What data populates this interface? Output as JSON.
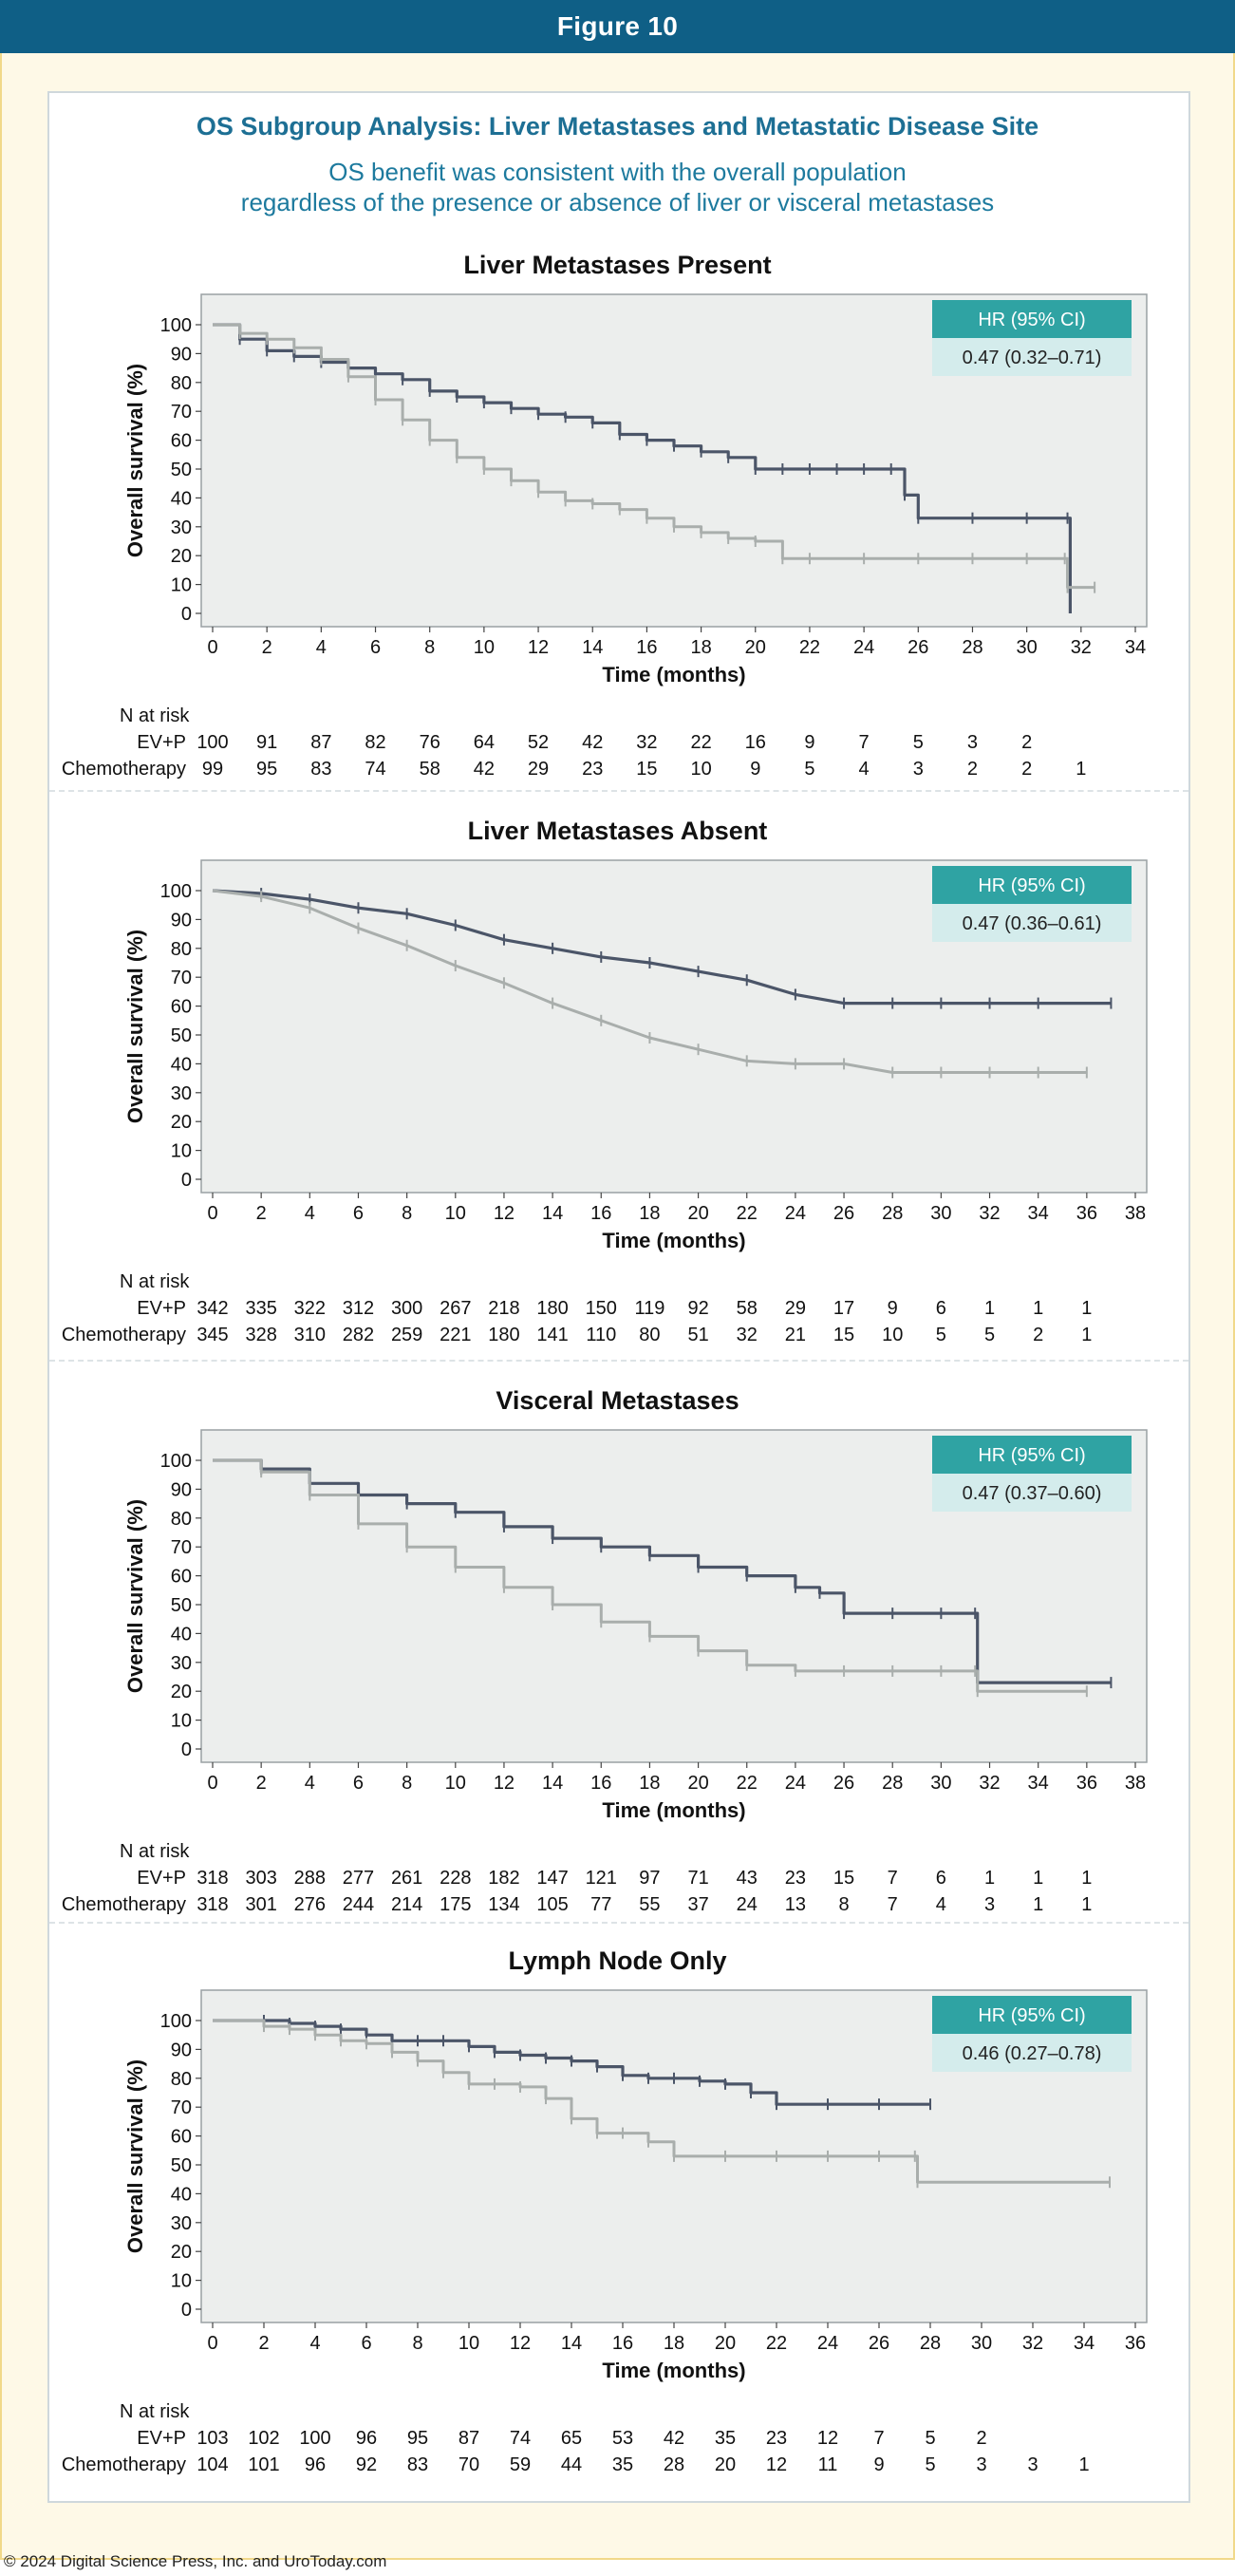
{
  "figure_label": "Figure 10",
  "title": "OS Subgroup Analysis: Liver Metastases and Metastatic Disease Site",
  "subtitle_line1": "OS benefit was consistent with the overall population",
  "subtitle_line2": "regardless of the presence or absence of liver or visceral metastases",
  "footer": "© 2024 Digital Science Press, Inc. and UroToday.com",
  "colors": {
    "header": "#0f5f86",
    "teal": "#2fa3a3",
    "teal_light": "#d4ecec",
    "evp": "#4b5568",
    "chemo": "#a9aeac",
    "plot_bg": "#eceeed"
  },
  "chart_data": [
    {
      "type": "line",
      "title": "Liver Metastases Present",
      "xlabel": "Time (months)",
      "ylabel": "Overall survival (%)",
      "xlim": [
        0,
        34
      ],
      "ylim": [
        0,
        100
      ],
      "xticks": [
        0,
        2,
        4,
        6,
        8,
        10,
        12,
        14,
        16,
        18,
        20,
        22,
        24,
        26,
        28,
        30,
        32,
        34
      ],
      "yticks": [
        0,
        10,
        20,
        30,
        40,
        50,
        60,
        70,
        80,
        90,
        100
      ],
      "hr_header": "HR (95% CI)",
      "hr_value": "0.47 (0.32–0.71)",
      "series": [
        {
          "name": "EV+P",
          "line": "step",
          "x": [
            0,
            1,
            2,
            3,
            4,
            5,
            6,
            7,
            8,
            9,
            10,
            11,
            12,
            13,
            14,
            15,
            16,
            17,
            18,
            19,
            20,
            21,
            22,
            23,
            24,
            25,
            25.5,
            26,
            28,
            30,
            31.5,
            31.6
          ],
          "y": [
            100,
            95,
            91,
            89,
            87,
            85,
            83,
            81,
            77,
            75,
            73,
            71,
            69,
            68,
            66,
            62,
            60,
            58,
            56,
            54,
            50,
            50,
            50,
            50,
            50,
            50,
            41,
            33,
            33,
            33,
            33,
            0
          ]
        },
        {
          "name": "Chemotherapy",
          "line": "step",
          "x": [
            0,
            1,
            2,
            3,
            4,
            5,
            6,
            7,
            8,
            9,
            10,
            11,
            12,
            13,
            14,
            15,
            16,
            17,
            18,
            19,
            20,
            21,
            22,
            24,
            26,
            28,
            30,
            31.4,
            31.5,
            32.5
          ],
          "y": [
            100,
            97,
            95,
            92,
            88,
            82,
            74,
            67,
            60,
            54,
            50,
            46,
            42,
            39,
            38,
            36,
            33,
            30,
            28,
            26,
            25,
            19,
            19,
            19,
            19,
            19,
            19,
            19,
            9,
            9
          ]
        }
      ],
      "risk_label": "N at risk",
      "risk": [
        {
          "label": "EV+P",
          "values": [
            "100",
            "91",
            "87",
            "82",
            "76",
            "64",
            "52",
            "42",
            "32",
            "22",
            "16",
            "9",
            "7",
            "5",
            "3",
            "2"
          ]
        },
        {
          "label": "Chemotherapy",
          "values": [
            "99",
            "95",
            "83",
            "74",
            "58",
            "42",
            "29",
            "23",
            "15",
            "10",
            "9",
            "5",
            "4",
            "3",
            "2",
            "2",
            "1"
          ]
        }
      ]
    },
    {
      "type": "line",
      "title": "Liver Metastases Absent",
      "xlabel": "Time (months)",
      "ylabel": "Overall survival (%)",
      "xlim": [
        0,
        38
      ],
      "ylim": [
        0,
        100
      ],
      "xticks": [
        0,
        2,
        4,
        6,
        8,
        10,
        12,
        14,
        16,
        18,
        20,
        22,
        24,
        26,
        28,
        30,
        32,
        34,
        36,
        38
      ],
      "yticks": [
        0,
        10,
        20,
        30,
        40,
        50,
        60,
        70,
        80,
        90,
        100
      ],
      "hr_header": "HR (95% CI)",
      "hr_value": "0.47 (0.36–0.61)",
      "series": [
        {
          "name": "EV+P",
          "line": "smooth",
          "x": [
            0,
            2,
            4,
            6,
            8,
            10,
            12,
            14,
            16,
            18,
            20,
            22,
            24,
            26,
            28,
            30,
            32,
            34,
            37
          ],
          "y": [
            100,
            99,
            97,
            94,
            92,
            88,
            83,
            80,
            77,
            75,
            72,
            69,
            64,
            61,
            61,
            61,
            61,
            61,
            61
          ]
        },
        {
          "name": "Chemotherapy",
          "line": "smooth",
          "x": [
            0,
            2,
            4,
            6,
            8,
            10,
            12,
            14,
            16,
            18,
            20,
            22,
            24,
            26,
            28,
            30,
            32,
            34,
            36
          ],
          "y": [
            100,
            98,
            94,
            87,
            81,
            74,
            68,
            61,
            55,
            49,
            45,
            41,
            40,
            40,
            37,
            37,
            37,
            37,
            37
          ]
        }
      ],
      "risk_label": "N at risk",
      "risk": [
        {
          "label": "EV+P",
          "values": [
            "342",
            "335",
            "322",
            "312",
            "300",
            "267",
            "218",
            "180",
            "150",
            "119",
            "92",
            "58",
            "29",
            "17",
            "9",
            "6",
            "1",
            "1",
            "1"
          ]
        },
        {
          "label": "Chemotherapy",
          "values": [
            "345",
            "328",
            "310",
            "282",
            "259",
            "221",
            "180",
            "141",
            "110",
            "80",
            "51",
            "32",
            "21",
            "15",
            "10",
            "5",
            "5",
            "2",
            "1"
          ]
        }
      ]
    },
    {
      "type": "line",
      "title": "Visceral Metastases",
      "xlabel": "Time (months)",
      "ylabel": "Overall survival (%)",
      "xlim": [
        0,
        38
      ],
      "ylim": [
        0,
        100
      ],
      "xticks": [
        0,
        2,
        4,
        6,
        8,
        10,
        12,
        14,
        16,
        18,
        20,
        22,
        24,
        26,
        28,
        30,
        32,
        34,
        36,
        38
      ],
      "yticks": [
        0,
        10,
        20,
        30,
        40,
        50,
        60,
        70,
        80,
        90,
        100
      ],
      "hr_header": "HR (95% CI)",
      "hr_value": "0.47 (0.37–0.60)",
      "series": [
        {
          "name": "EV+P",
          "line": "step",
          "x": [
            0,
            2,
            4,
            6,
            8,
            10,
            12,
            14,
            16,
            18,
            20,
            22,
            24,
            25,
            26,
            28,
            30,
            31.4,
            31.5,
            37
          ],
          "y": [
            100,
            97,
            92,
            88,
            85,
            82,
            77,
            73,
            70,
            67,
            63,
            60,
            56,
            54,
            47,
            47,
            47,
            47,
            23,
            23
          ]
        },
        {
          "name": "Chemotherapy",
          "line": "step",
          "x": [
            0,
            2,
            4,
            6,
            8,
            10,
            12,
            14,
            16,
            18,
            20,
            22,
            24,
            26,
            28,
            30,
            31.4,
            31.5,
            36
          ],
          "y": [
            100,
            96,
            88,
            78,
            70,
            63,
            56,
            50,
            44,
            39,
            34,
            29,
            27,
            27,
            27,
            27,
            27,
            20,
            20
          ]
        }
      ],
      "risk_label": "N at risk",
      "risk": [
        {
          "label": "EV+P",
          "values": [
            "318",
            "303",
            "288",
            "277",
            "261",
            "228",
            "182",
            "147",
            "121",
            "97",
            "71",
            "43",
            "23",
            "15",
            "7",
            "6",
            "1",
            "1",
            "1"
          ]
        },
        {
          "label": "Chemotherapy",
          "values": [
            "318",
            "301",
            "276",
            "244",
            "214",
            "175",
            "134",
            "105",
            "77",
            "55",
            "37",
            "24",
            "13",
            "8",
            "7",
            "4",
            "3",
            "1",
            "1"
          ]
        }
      ]
    },
    {
      "type": "line",
      "title": "Lymph Node Only",
      "xlabel": "Time (months)",
      "ylabel": "Overall survival (%)",
      "xlim": [
        0,
        36
      ],
      "ylim": [
        0,
        100
      ],
      "xticks": [
        0,
        2,
        4,
        6,
        8,
        10,
        12,
        14,
        16,
        18,
        20,
        22,
        24,
        26,
        28,
        30,
        32,
        34,
        36
      ],
      "yticks": [
        0,
        10,
        20,
        30,
        40,
        50,
        60,
        70,
        80,
        90,
        100
      ],
      "hr_header": "HR (95% CI)",
      "hr_value": "0.46 (0.27–0.78)",
      "series": [
        {
          "name": "EV+P",
          "line": "step",
          "x": [
            0,
            2,
            3,
            4,
            5,
            6,
            7,
            8,
            9,
            10,
            11,
            12,
            13,
            14,
            15,
            16,
            17,
            18,
            19,
            20,
            21,
            22,
            24,
            26,
            28
          ],
          "y": [
            100,
            100,
            99,
            98,
            97,
            95,
            93,
            93,
            93,
            91,
            89,
            88,
            87,
            86,
            84,
            81,
            80,
            80,
            79,
            78,
            75,
            71,
            71,
            71,
            71
          ]
        },
        {
          "name": "Chemotherapy",
          "line": "step",
          "x": [
            0,
            2,
            3,
            4,
            5,
            6,
            7,
            8,
            9,
            10,
            11,
            12,
            13,
            14,
            15,
            16,
            17,
            18,
            20,
            22,
            24,
            26,
            27.4,
            27.5,
            35
          ],
          "y": [
            100,
            98,
            97,
            95,
            93,
            92,
            89,
            86,
            82,
            78,
            78,
            77,
            73,
            66,
            61,
            61,
            58,
            53,
            53,
            53,
            53,
            53,
            53,
            44,
            44
          ]
        }
      ],
      "risk_label": "N at risk",
      "risk": [
        {
          "label": "EV+P",
          "values": [
            "103",
            "102",
            "100",
            "96",
            "95",
            "87",
            "74",
            "65",
            "53",
            "42",
            "35",
            "23",
            "12",
            "7",
            "5",
            "2"
          ]
        },
        {
          "label": "Chemotherapy",
          "values": [
            "104",
            "101",
            "96",
            "92",
            "83",
            "70",
            "59",
            "44",
            "35",
            "28",
            "20",
            "12",
            "11",
            "9",
            "5",
            "3",
            "3",
            "1"
          ]
        }
      ]
    }
  ]
}
